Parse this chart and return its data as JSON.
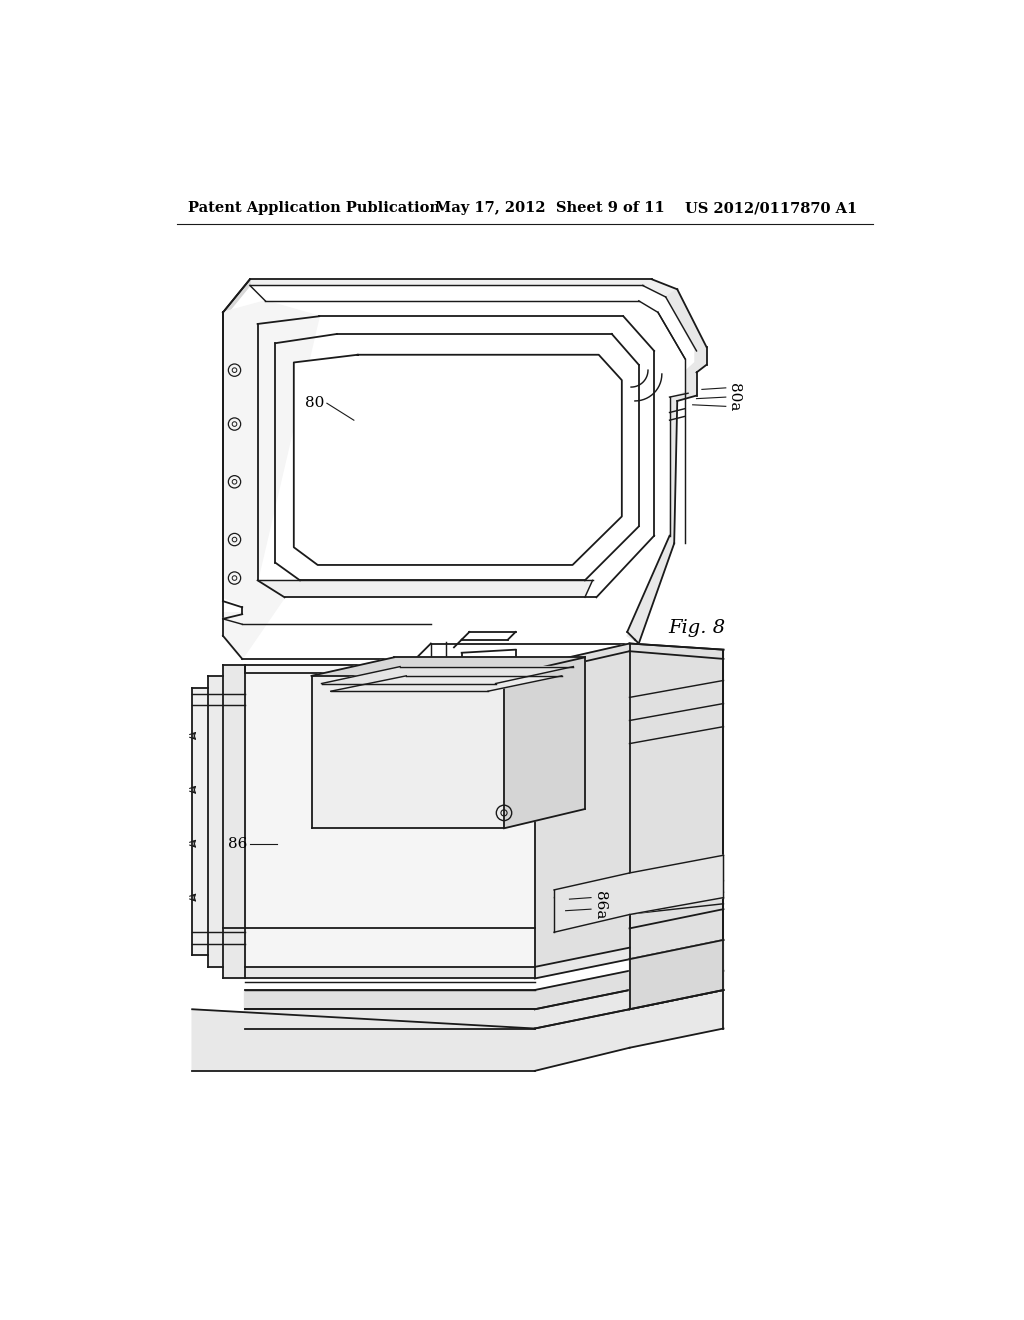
{
  "background_color": "#ffffff",
  "header_left": "Patent Application Publication",
  "header_center": "May 17, 2012  Sheet 9 of 11",
  "header_right": "US 2012/0117870 A1",
  "fig_label": "Fig. 8",
  "label_80": "80",
  "label_80a": "80a",
  "label_86": "86",
  "label_86a": "86a",
  "line_color": "#1a1a1a",
  "lw": 1.3,
  "header_fontsize": 10.5,
  "label_fontsize": 11,
  "fig_label_fontsize": 14
}
